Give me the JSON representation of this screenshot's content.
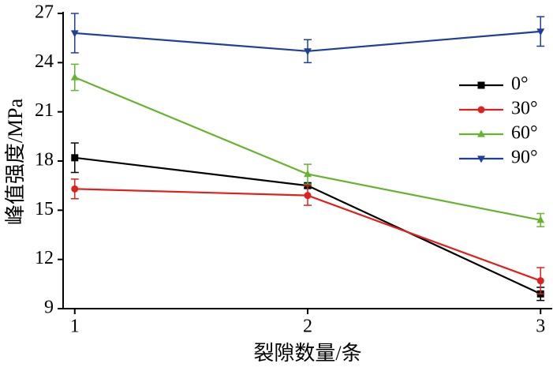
{
  "chart_data": {
    "type": "line",
    "xlabel": "裂隙数量/条",
    "ylabel": "峰值强度/MPa",
    "x": [
      1,
      2,
      3
    ],
    "series": [
      {
        "name": "0°",
        "color": "#000000",
        "marker": "square",
        "values": [
          18.2,
          16.5,
          9.9
        ],
        "errors": [
          0.9,
          0.15,
          0.4
        ]
      },
      {
        "name": "30°",
        "color": "#e0201c",
        "marker": "circle",
        "values": [
          16.3,
          15.9,
          10.7
        ],
        "errors": [
          0.6,
          0.6,
          0.8
        ]
      },
      {
        "name": "60°",
        "color": "#66b32e",
        "marker": "triangle-up",
        "values": [
          23.1,
          17.2,
          14.4
        ],
        "errors": [
          0.8,
          0.6,
          0.4
        ]
      },
      {
        "name": "90°",
        "color": "#1f3f9c",
        "marker": "triangle-down",
        "values": [
          25.8,
          24.7,
          25.9
        ],
        "errors": [
          1.2,
          0.7,
          0.9
        ]
      }
    ],
    "xlim": [
      0.95,
      3.05
    ],
    "xticks": [
      1,
      2,
      3
    ],
    "ylim": [
      9,
      27
    ],
    "yticks": [
      9,
      12,
      15,
      18,
      21,
      24,
      27
    ],
    "legend": "upper right"
  }
}
